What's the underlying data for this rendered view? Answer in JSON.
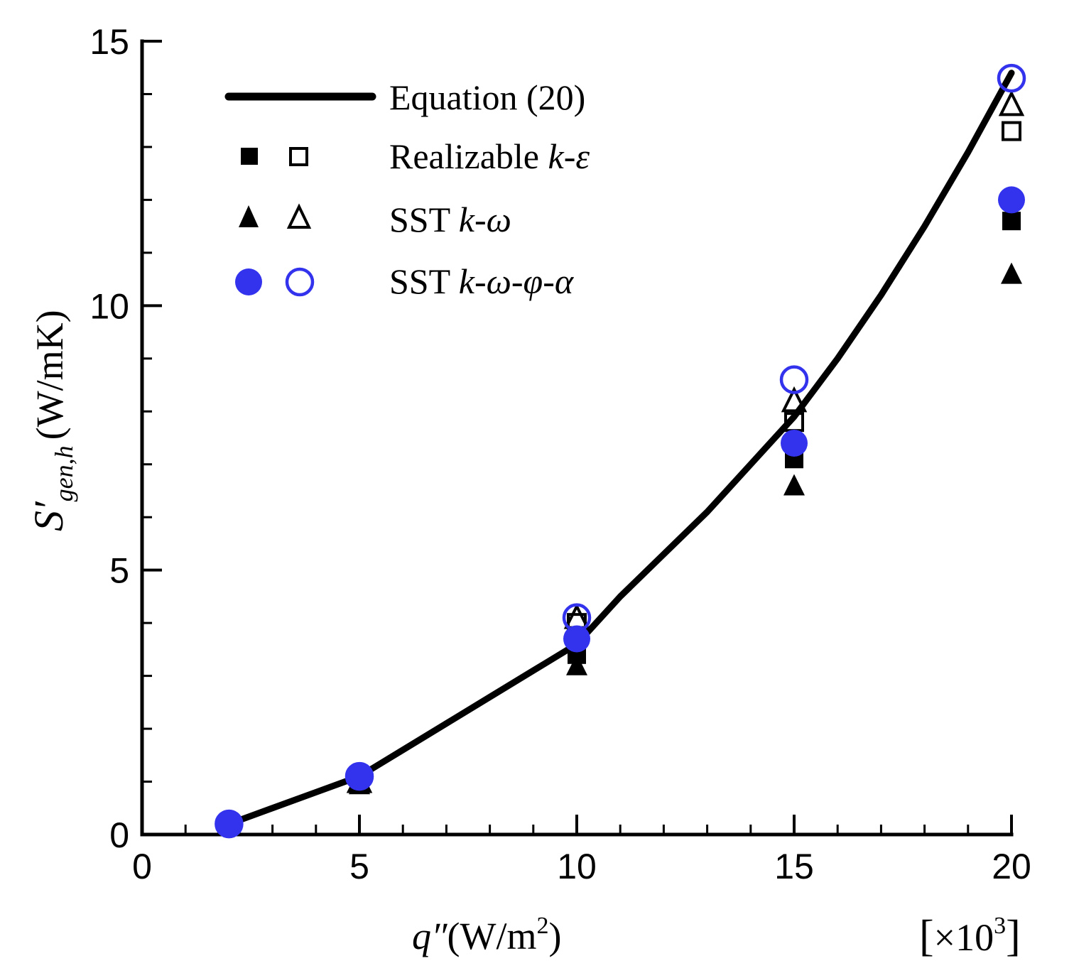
{
  "chart_data": {
    "type": "scatter",
    "xlabel": {
      "symbol": "q″",
      "unit_open": "(W/m",
      "unit_exp": "2",
      "unit_close": ")"
    },
    "ylabel": {
      "symbol": "S′",
      "subscript": "gen,h",
      "unit": "(W/mK)"
    },
    "x_multiplier": {
      "open": "[",
      "base": "×10",
      "exp": "3",
      "close": "]"
    },
    "xlim": [
      0,
      20
    ],
    "ylim": [
      0,
      15
    ],
    "x_ticks": [
      0,
      5,
      10,
      15,
      20
    ],
    "x_tick_labels": [
      "0",
      "5",
      "10",
      "15",
      "20"
    ],
    "y_ticks": [
      0,
      5,
      10,
      15
    ],
    "y_tick_labels": [
      "0",
      "5",
      "10",
      "15"
    ],
    "x_minor_step": 1,
    "y_minor_step": 1,
    "curve": {
      "name": "Equation (20)",
      "x": [
        2,
        3,
        4,
        5,
        6,
        7,
        8,
        9,
        10,
        11,
        12,
        13,
        14,
        15,
        16,
        17,
        18,
        19,
        20
      ],
      "y": [
        0.2,
        0.5,
        0.8,
        1.1,
        1.6,
        2.1,
        2.6,
        3.1,
        3.6,
        4.5,
        5.3,
        6.1,
        7.0,
        7.9,
        9.0,
        10.2,
        11.5,
        12.9,
        14.4
      ]
    },
    "series": [
      {
        "name": "Realizable k-ε (filled)",
        "marker": "square",
        "filled": true,
        "x": [
          2,
          5,
          10,
          15,
          20
        ],
        "y": [
          0.2,
          0.95,
          3.4,
          7.1,
          11.6
        ]
      },
      {
        "name": "Realizable k-ε (open)",
        "marker": "square",
        "filled": false,
        "x": [
          2,
          5,
          10,
          15,
          20
        ],
        "y": [
          0.2,
          1.0,
          4.0,
          7.8,
          13.3
        ]
      },
      {
        "name": "SST k-ω (filled)",
        "marker": "triangle",
        "filled": true,
        "x": [
          2,
          5,
          10,
          15,
          20
        ],
        "y": [
          0.2,
          0.95,
          3.2,
          6.6,
          10.6
        ]
      },
      {
        "name": "SST k-ω (open)",
        "marker": "triangle",
        "filled": false,
        "x": [
          2,
          5,
          10,
          15,
          20
        ],
        "y": [
          0.2,
          1.0,
          4.1,
          8.2,
          13.8
        ]
      },
      {
        "name": "SST k-ω-φ-α (filled)",
        "marker": "circle",
        "filled": true,
        "x": [
          2,
          5,
          10,
          15,
          20
        ],
        "y": [
          0.2,
          1.1,
          3.7,
          7.4,
          12.0
        ]
      },
      {
        "name": "SST k-ω-φ-α (open)",
        "marker": "circle",
        "filled": false,
        "x": [
          2,
          5,
          10,
          15,
          20
        ],
        "y": [
          0.2,
          1.1,
          4.1,
          8.6,
          14.3
        ]
      }
    ],
    "legend": {
      "placement": "top-left",
      "entries": [
        {
          "kind": "line",
          "text": "Equation (20)"
        },
        {
          "kind": "square",
          "text_plain": "Realizable ",
          "text_italic": "k-ε"
        },
        {
          "kind": "triangle",
          "text_plain": "SST ",
          "text_italic": "k-ω"
        },
        {
          "kind": "circle",
          "text_plain": "SST ",
          "text_italic": "k-ω-φ-α"
        }
      ]
    },
    "colors": {
      "black": "#000000",
      "blue": "#3333ee"
    }
  }
}
